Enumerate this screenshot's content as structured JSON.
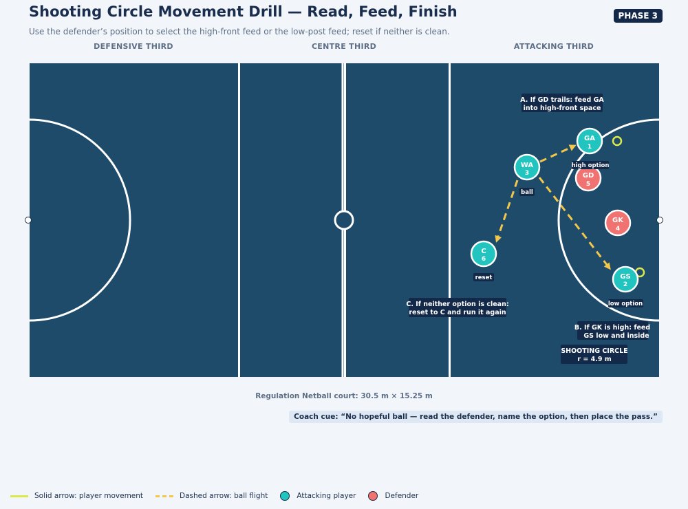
{
  "header": {
    "title": "Shooting Circle Movement Drill — Read, Feed, Finish",
    "subtitle": "Use the defender’s position to select the high-front feed or the low-post feed; reset if neither is clean.",
    "phase_badge": "PHASE 3"
  },
  "thirds": [
    "DEFENSIVE THIRD",
    "CENTRE THIRD",
    "ATTACKING THIRD"
  ],
  "colors": {
    "court": "#1f4b6b",
    "court_lines": "#ffffff",
    "attacker": "#21c4be",
    "defender": "#f07271",
    "ball_flight": "#f3c84a",
    "player_movement": "#d9e84a",
    "callout_bg": "#13294a",
    "background": "#f2f6fb"
  },
  "players": {
    "attackers": [
      {
        "id": "GA",
        "number": "1",
        "tag": "high option"
      },
      {
        "id": "WA",
        "number": "3",
        "tag": "ball"
      },
      {
        "id": "C",
        "number": "6",
        "tag": "reset"
      },
      {
        "id": "GS",
        "number": "2",
        "tag": "low option"
      }
    ],
    "defenders": [
      {
        "id": "GD",
        "number": "5"
      },
      {
        "id": "GK",
        "number": "4"
      }
    ]
  },
  "callouts": {
    "a": [
      "A. If GD trails: feed GA",
      "into high-front space"
    ],
    "b": [
      "B. If GK is high: feed",
      "GS low and inside"
    ],
    "c": [
      "C. If neither option is clean:",
      "reset to C and run it again"
    ],
    "circle": [
      "SHOOTING CIRCLE",
      "r = 4.9 m"
    ]
  },
  "court_caption": "Regulation Netball court: 30.5 m × 15.25 m",
  "coach_cue": "Coach cue: “No hopeful ball — read the defender, name the option, then place the pass.”",
  "legend": {
    "solid": "Solid arrow: player movement",
    "dashed": "Dashed arrow: ball flight",
    "attacker": "Attacking player",
    "defender": "Defender"
  }
}
